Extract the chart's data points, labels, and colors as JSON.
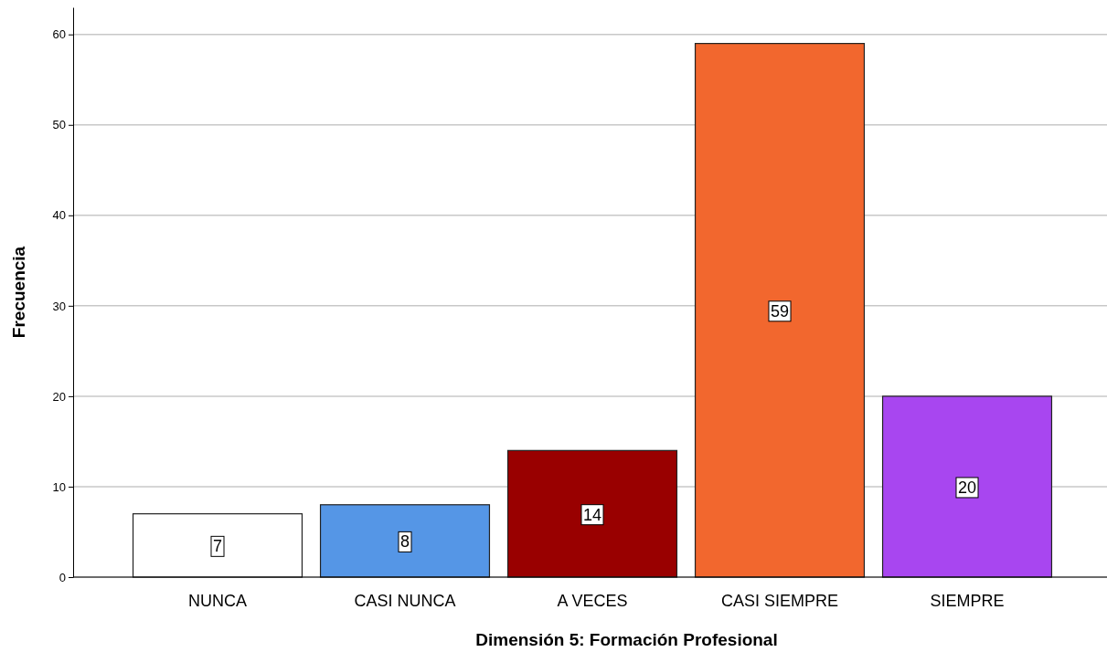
{
  "chart_data": {
    "type": "bar",
    "xlabel": "Dimensión 5: Formación Profesional",
    "ylabel": "Frecuencia",
    "categories": [
      "NUNCA",
      "CASI NUNCA",
      "A VECES",
      "CASI SIEMPRE",
      "SIEMPRE"
    ],
    "values": [
      7,
      8,
      14,
      59,
      20
    ],
    "colors": [
      "#ffffff",
      "#5596e6",
      "#990000",
      "#f2672e",
      "#a846f0"
    ],
    "ylim": [
      0,
      63
    ],
    "yticks": [
      0,
      10,
      20,
      30,
      40,
      50,
      60
    ],
    "grid": "y",
    "data_labels": true
  }
}
